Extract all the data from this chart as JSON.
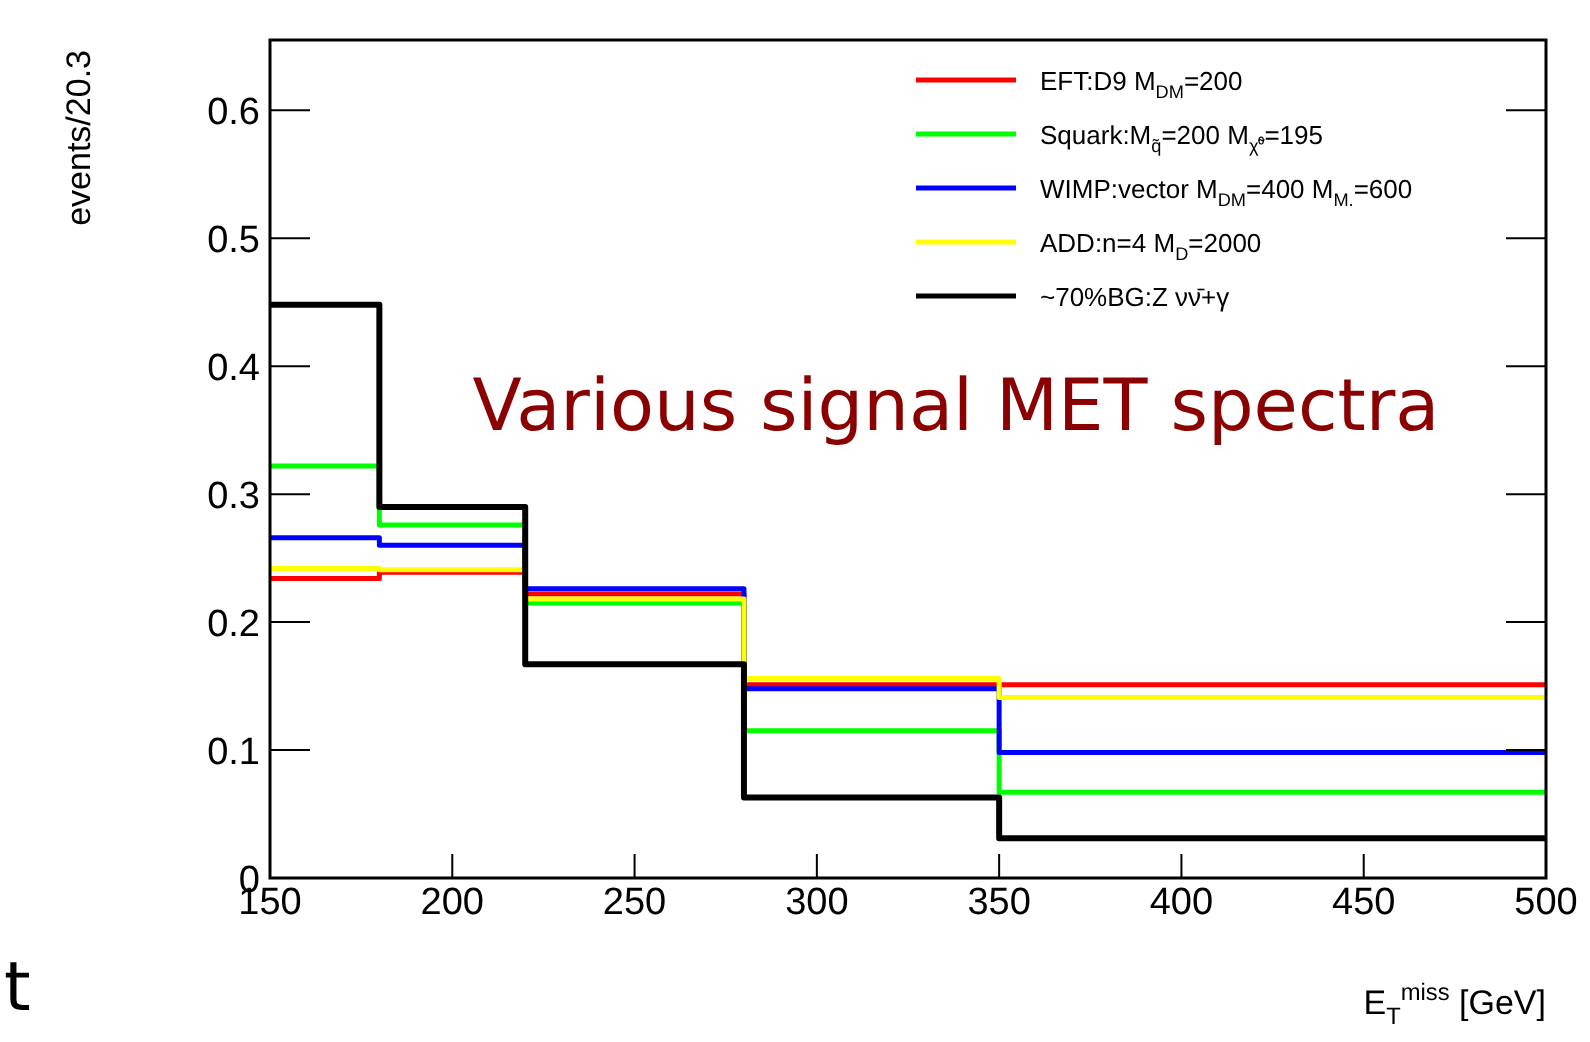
{
  "chart_data": {
    "type": "histogram",
    "ylabel": "events/20.3",
    "xlabel": "E$_{T}$$^{miss}$ [GeV]",
    "bins": [
      150,
      180,
      220,
      280,
      350,
      500
    ],
    "series": [
      {
        "name": "EFT:D9 M$_{DM}$=200",
        "color": "#ff0000",
        "values": [
          0.234,
          0.239,
          0.222,
          0.151,
          0.151
        ]
      },
      {
        "name": "Squark:M$_{q̃}$=200 M$_{χ̃⁰}$=195",
        "color": "#00ff00",
        "values": [
          0.322,
          0.276,
          0.215,
          0.115,
          0.067
        ]
      },
      {
        "name": "WIMP:vector M$_{DM}$=400 M$_{M.}$=600",
        "color": "#0000ff",
        "values": [
          0.266,
          0.26,
          0.226,
          0.148,
          0.098
        ]
      },
      {
        "name": "ADD:n=4 M$_{D}$=2000",
        "color": "#ffff00",
        "values": [
          0.242,
          0.241,
          0.218,
          0.156,
          0.141
        ]
      },
      {
        "name": "~70%BG:Z νν̄+γ",
        "color": "#000000",
        "values": [
          0.448,
          0.29,
          0.167,
          0.063,
          0.031
        ]
      }
    ],
    "xlim": [
      150,
      500
    ],
    "ylim": [
      0,
      0.655
    ],
    "xticks": [
      150,
      200,
      250,
      300,
      350,
      400,
      450,
      500
    ],
    "yticks": [
      0,
      0.1,
      0.2,
      0.3,
      0.4,
      0.5,
      0.6
    ],
    "legend": "top right",
    "annotations": [
      "Various signal MET spectra",
      "t"
    ]
  }
}
